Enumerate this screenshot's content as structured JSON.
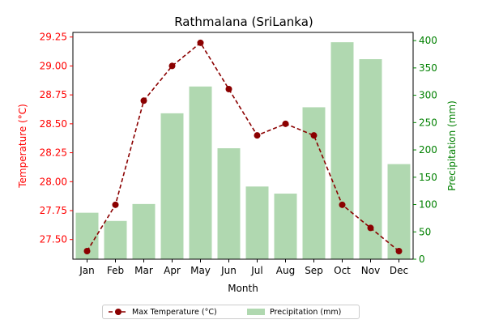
{
  "chart_data": {
    "type": "bar+line",
    "title": "Rathmalana (SriLanka)",
    "xlabel": "Month",
    "categories": [
      "Jan",
      "Feb",
      "Mar",
      "Apr",
      "May",
      "Jun",
      "Jul",
      "Aug",
      "Sep",
      "Oct",
      "Nov",
      "Dec"
    ],
    "left_axis": {
      "label": "Temperature (°C)",
      "color": "#ff0000",
      "lim": [
        27.33,
        29.29
      ],
      "ticks": [
        "27.50",
        "27.75",
        "28.00",
        "28.25",
        "28.50",
        "28.75",
        "29.00",
        "29.25"
      ]
    },
    "right_axis": {
      "label": "Precipitation (mm)",
      "color": "#008000",
      "lim": [
        0,
        415
      ],
      "ticks": [
        "0",
        "50",
        "100",
        "150",
        "200",
        "250",
        "300",
        "350",
        "400"
      ]
    },
    "series": [
      {
        "name": "Max Temperature (°C)",
        "type": "line",
        "axis": "left",
        "color": "#8b0000",
        "style": "dashed",
        "marker": "circle",
        "values": [
          27.4,
          27.8,
          28.7,
          29.0,
          29.2,
          28.8,
          28.4,
          28.5,
          28.4,
          27.8,
          27.6,
          27.4
        ]
      },
      {
        "name": "Precipitation (mm)",
        "type": "bar",
        "axis": "right",
        "color": "#b0d8b0",
        "values": [
          85,
          70,
          101,
          267,
          316,
          203,
          133,
          120,
          278,
          397,
          366,
          174
        ]
      }
    ],
    "legend": {
      "placement": "bottom-center"
    }
  }
}
